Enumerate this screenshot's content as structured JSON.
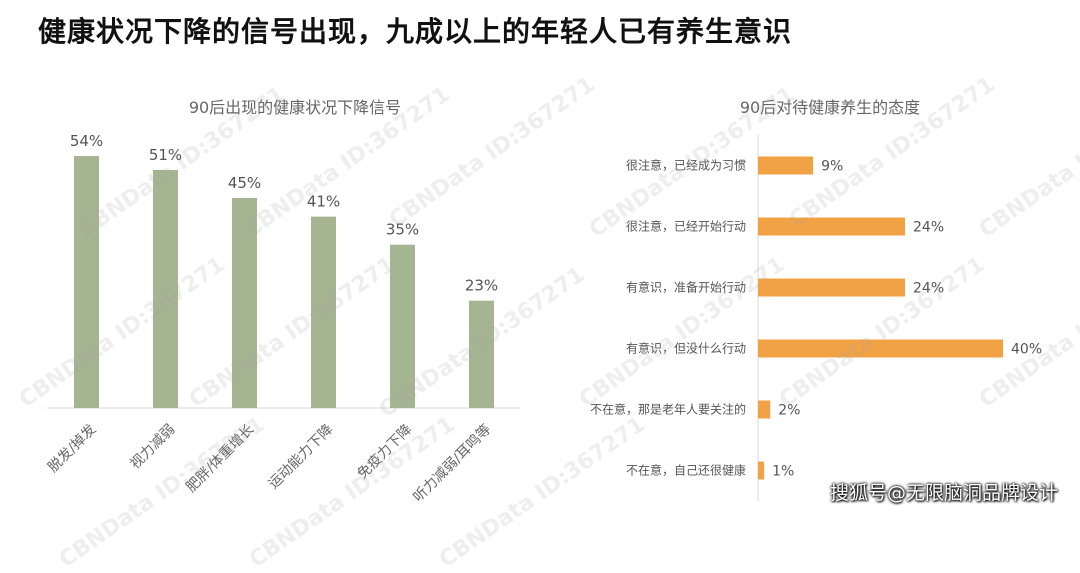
{
  "title": "健康状况下降的信号出现，九成以上的年轻人已有养生意识",
  "watermark": "CBNData ID:367271",
  "credit": "搜狐号@无限脑洞品牌设计",
  "colors": {
    "bar_left": "#a5b592",
    "bar_right": "#f1a244"
  },
  "chart_data": [
    {
      "type": "bar",
      "title": "90后出现的健康状况下降信号",
      "categories": [
        "脱发/掉发",
        "视力减弱",
        "肥胖/体重增长",
        "运动能力下降",
        "免疫力下降",
        "听力减弱/耳鸣等"
      ],
      "values": [
        54,
        51,
        45,
        41,
        35,
        23
      ],
      "value_labels": [
        "54%",
        "51%",
        "45%",
        "41%",
        "35%",
        "23%"
      ],
      "unit": "%",
      "ylim": [
        0,
        60
      ]
    },
    {
      "type": "bar",
      "orientation": "horizontal",
      "title": "90后对待健康养生的态度",
      "categories": [
        "很注意，已经成为习惯",
        "很注意，已经开始行动",
        "有意识，准备开始行动",
        "有意识，但没什么行动",
        "不在意，那是老年人要关注的",
        "不在意，自己还很健康"
      ],
      "values": [
        9,
        24,
        24,
        40,
        2,
        1
      ],
      "value_labels": [
        "9%",
        "24%",
        "24%",
        "40%",
        "2%",
        "1%"
      ],
      "unit": "%",
      "xlim": [
        0,
        40
      ]
    }
  ]
}
